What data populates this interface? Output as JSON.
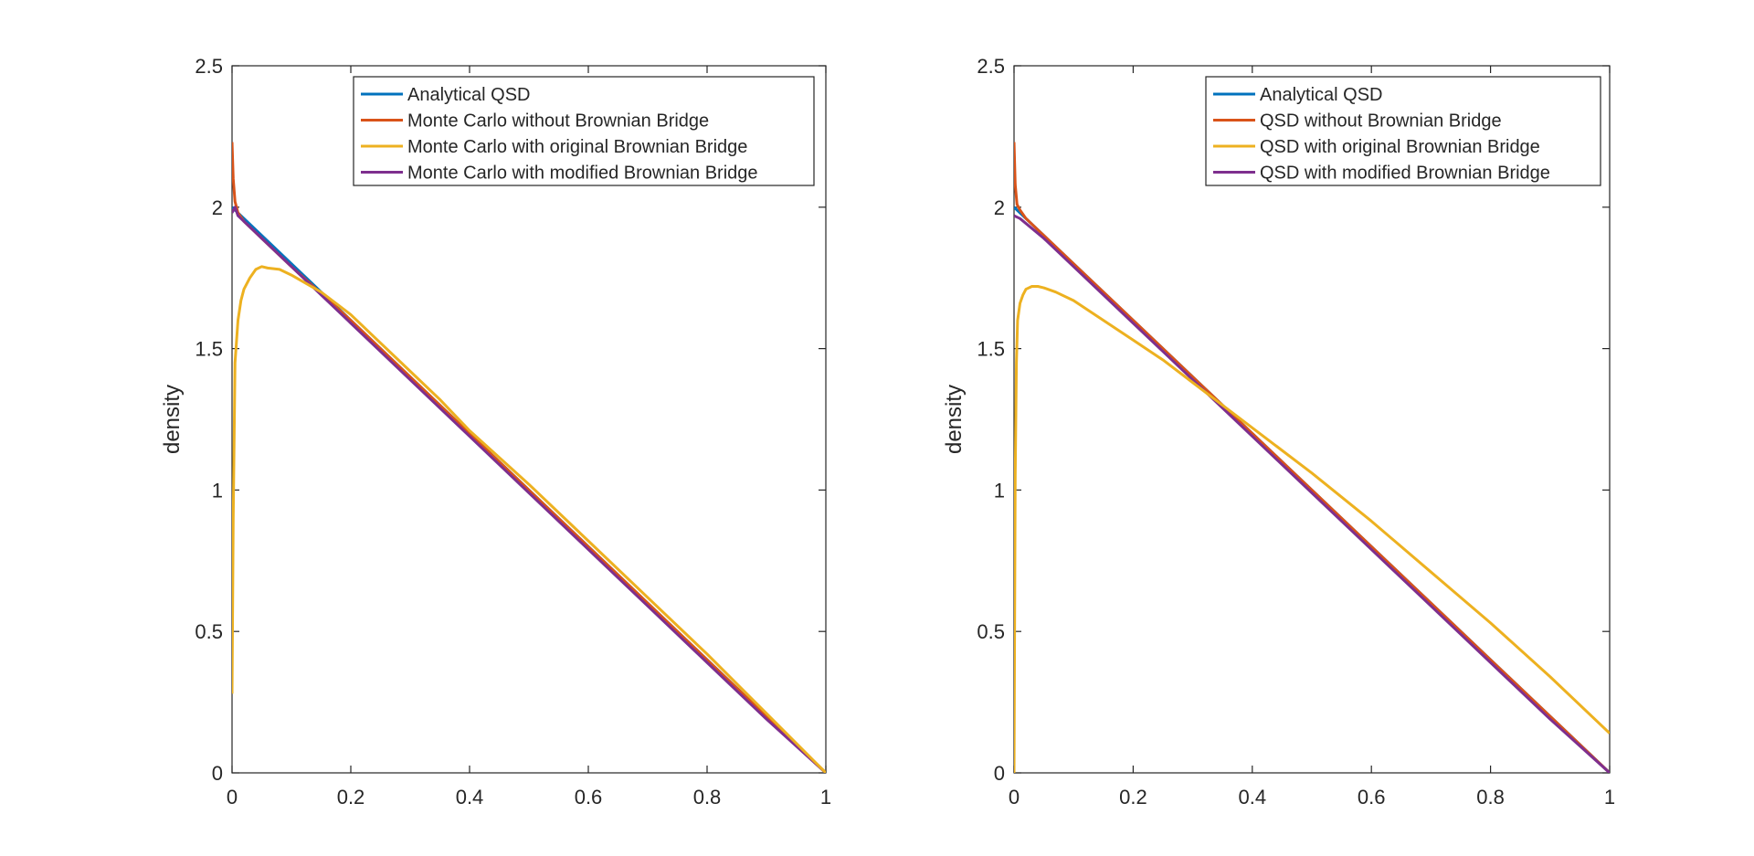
{
  "colors": {
    "analytical": "#0072BD",
    "without": "#D95319",
    "original": "#EDB120",
    "modified": "#7E2F8E",
    "axis": "#262626",
    "background": "#ffffff"
  },
  "chart_data": [
    {
      "type": "line",
      "title": "",
      "xlabel": "",
      "ylabel": "density",
      "xlim": [
        0,
        1
      ],
      "ylim": [
        0,
        2.5
      ],
      "xticks": [
        "0",
        "0.2",
        "0.4",
        "0.6",
        "0.8",
        "1"
      ],
      "yticks": [
        "0",
        "0.5",
        "1",
        "1.5",
        "2",
        "2.5"
      ],
      "legend_position": "top-right",
      "series": [
        {
          "name": "Analytical QSD",
          "color": "#0072BD",
          "x": [
            0,
            1
          ],
          "y": [
            2.0,
            0.0
          ]
        },
        {
          "name": "Monte Carlo without Brownian Bridge",
          "color": "#D95319",
          "x": [
            0,
            0.002,
            0.005,
            0.01,
            0.02,
            0.05,
            0.1,
            0.2,
            0.3,
            0.4,
            0.5,
            0.6,
            0.7,
            0.8,
            0.9,
            1.0
          ],
          "y": [
            2.23,
            2.1,
            2.02,
            1.98,
            1.95,
            1.89,
            1.79,
            1.6,
            1.4,
            1.2,
            1.0,
            0.8,
            0.6,
            0.4,
            0.2,
            0.0
          ]
        },
        {
          "name": "Monte Carlo with original Brownian Bridge",
          "color": "#EDB120",
          "x": [
            0,
            0.002,
            0.005,
            0.01,
            0.015,
            0.02,
            0.03,
            0.04,
            0.05,
            0.06,
            0.08,
            0.1,
            0.15,
            0.2,
            0.25,
            0.3,
            0.35,
            0.4,
            0.5,
            0.6,
            0.7,
            0.8,
            0.9,
            1.0
          ],
          "y": [
            0.28,
            0.9,
            1.45,
            1.6,
            1.67,
            1.71,
            1.75,
            1.78,
            1.79,
            1.785,
            1.78,
            1.76,
            1.7,
            1.62,
            1.52,
            1.42,
            1.32,
            1.21,
            1.02,
            0.82,
            0.62,
            0.42,
            0.21,
            0.0
          ]
        },
        {
          "name": "Monte Carlo with modified Brownian Bridge",
          "color": "#7E2F8E",
          "x": [
            0,
            0.005,
            0.01,
            0.02,
            0.05,
            0.1,
            0.2,
            0.3,
            0.4,
            0.5,
            0.6,
            0.7,
            0.8,
            0.9,
            1.0
          ],
          "y": [
            1.98,
            2.0,
            1.97,
            1.95,
            1.89,
            1.79,
            1.59,
            1.39,
            1.19,
            0.99,
            0.79,
            0.59,
            0.39,
            0.19,
            0.0
          ]
        }
      ]
    },
    {
      "type": "line",
      "title": "",
      "xlabel": "",
      "ylabel": "density",
      "xlim": [
        0,
        1
      ],
      "ylim": [
        0,
        2.5
      ],
      "xticks": [
        "0",
        "0.2",
        "0.4",
        "0.6",
        "0.8",
        "1"
      ],
      "yticks": [
        "0",
        "0.5",
        "1",
        "1.5",
        "2",
        "2.5"
      ],
      "legend_position": "top-right",
      "series": [
        {
          "name": "Analytical QSD",
          "color": "#0072BD",
          "x": [
            0,
            1
          ],
          "y": [
            2.0,
            0.0
          ]
        },
        {
          "name": "QSD without Brownian Bridge",
          "color": "#D95319",
          "x": [
            0,
            0.002,
            0.005,
            0.01,
            0.02,
            0.05,
            0.1,
            0.2,
            0.3,
            0.4,
            0.5,
            0.6,
            0.7,
            0.8,
            0.9,
            1.0
          ],
          "y": [
            2.23,
            2.08,
            2.01,
            1.99,
            1.96,
            1.9,
            1.8,
            1.6,
            1.4,
            1.2,
            1.0,
            0.8,
            0.6,
            0.4,
            0.2,
            0.0
          ]
        },
        {
          "name": "QSD with original Brownian Bridge",
          "color": "#EDB120",
          "x": [
            0,
            0.002,
            0.004,
            0.006,
            0.01,
            0.015,
            0.02,
            0.03,
            0.04,
            0.05,
            0.07,
            0.1,
            0.15,
            0.2,
            0.25,
            0.3,
            0.35,
            0.4,
            0.5,
            0.6,
            0.7,
            0.8,
            0.9,
            1.0
          ],
          "y": [
            0.0,
            1.05,
            1.45,
            1.6,
            1.66,
            1.69,
            1.71,
            1.72,
            1.72,
            1.715,
            1.7,
            1.67,
            1.6,
            1.53,
            1.46,
            1.38,
            1.3,
            1.22,
            1.06,
            0.89,
            0.71,
            0.53,
            0.34,
            0.14
          ]
        },
        {
          "name": "QSD with modified Brownian Bridge",
          "color": "#7E2F8E",
          "x": [
            0,
            0.01,
            0.05,
            0.1,
            0.2,
            0.3,
            0.4,
            0.5,
            0.6,
            0.7,
            0.8,
            0.9,
            1.0
          ],
          "y": [
            1.97,
            1.96,
            1.89,
            1.79,
            1.59,
            1.39,
            1.19,
            0.99,
            0.79,
            0.59,
            0.39,
            0.19,
            0.0
          ]
        }
      ]
    }
  ]
}
